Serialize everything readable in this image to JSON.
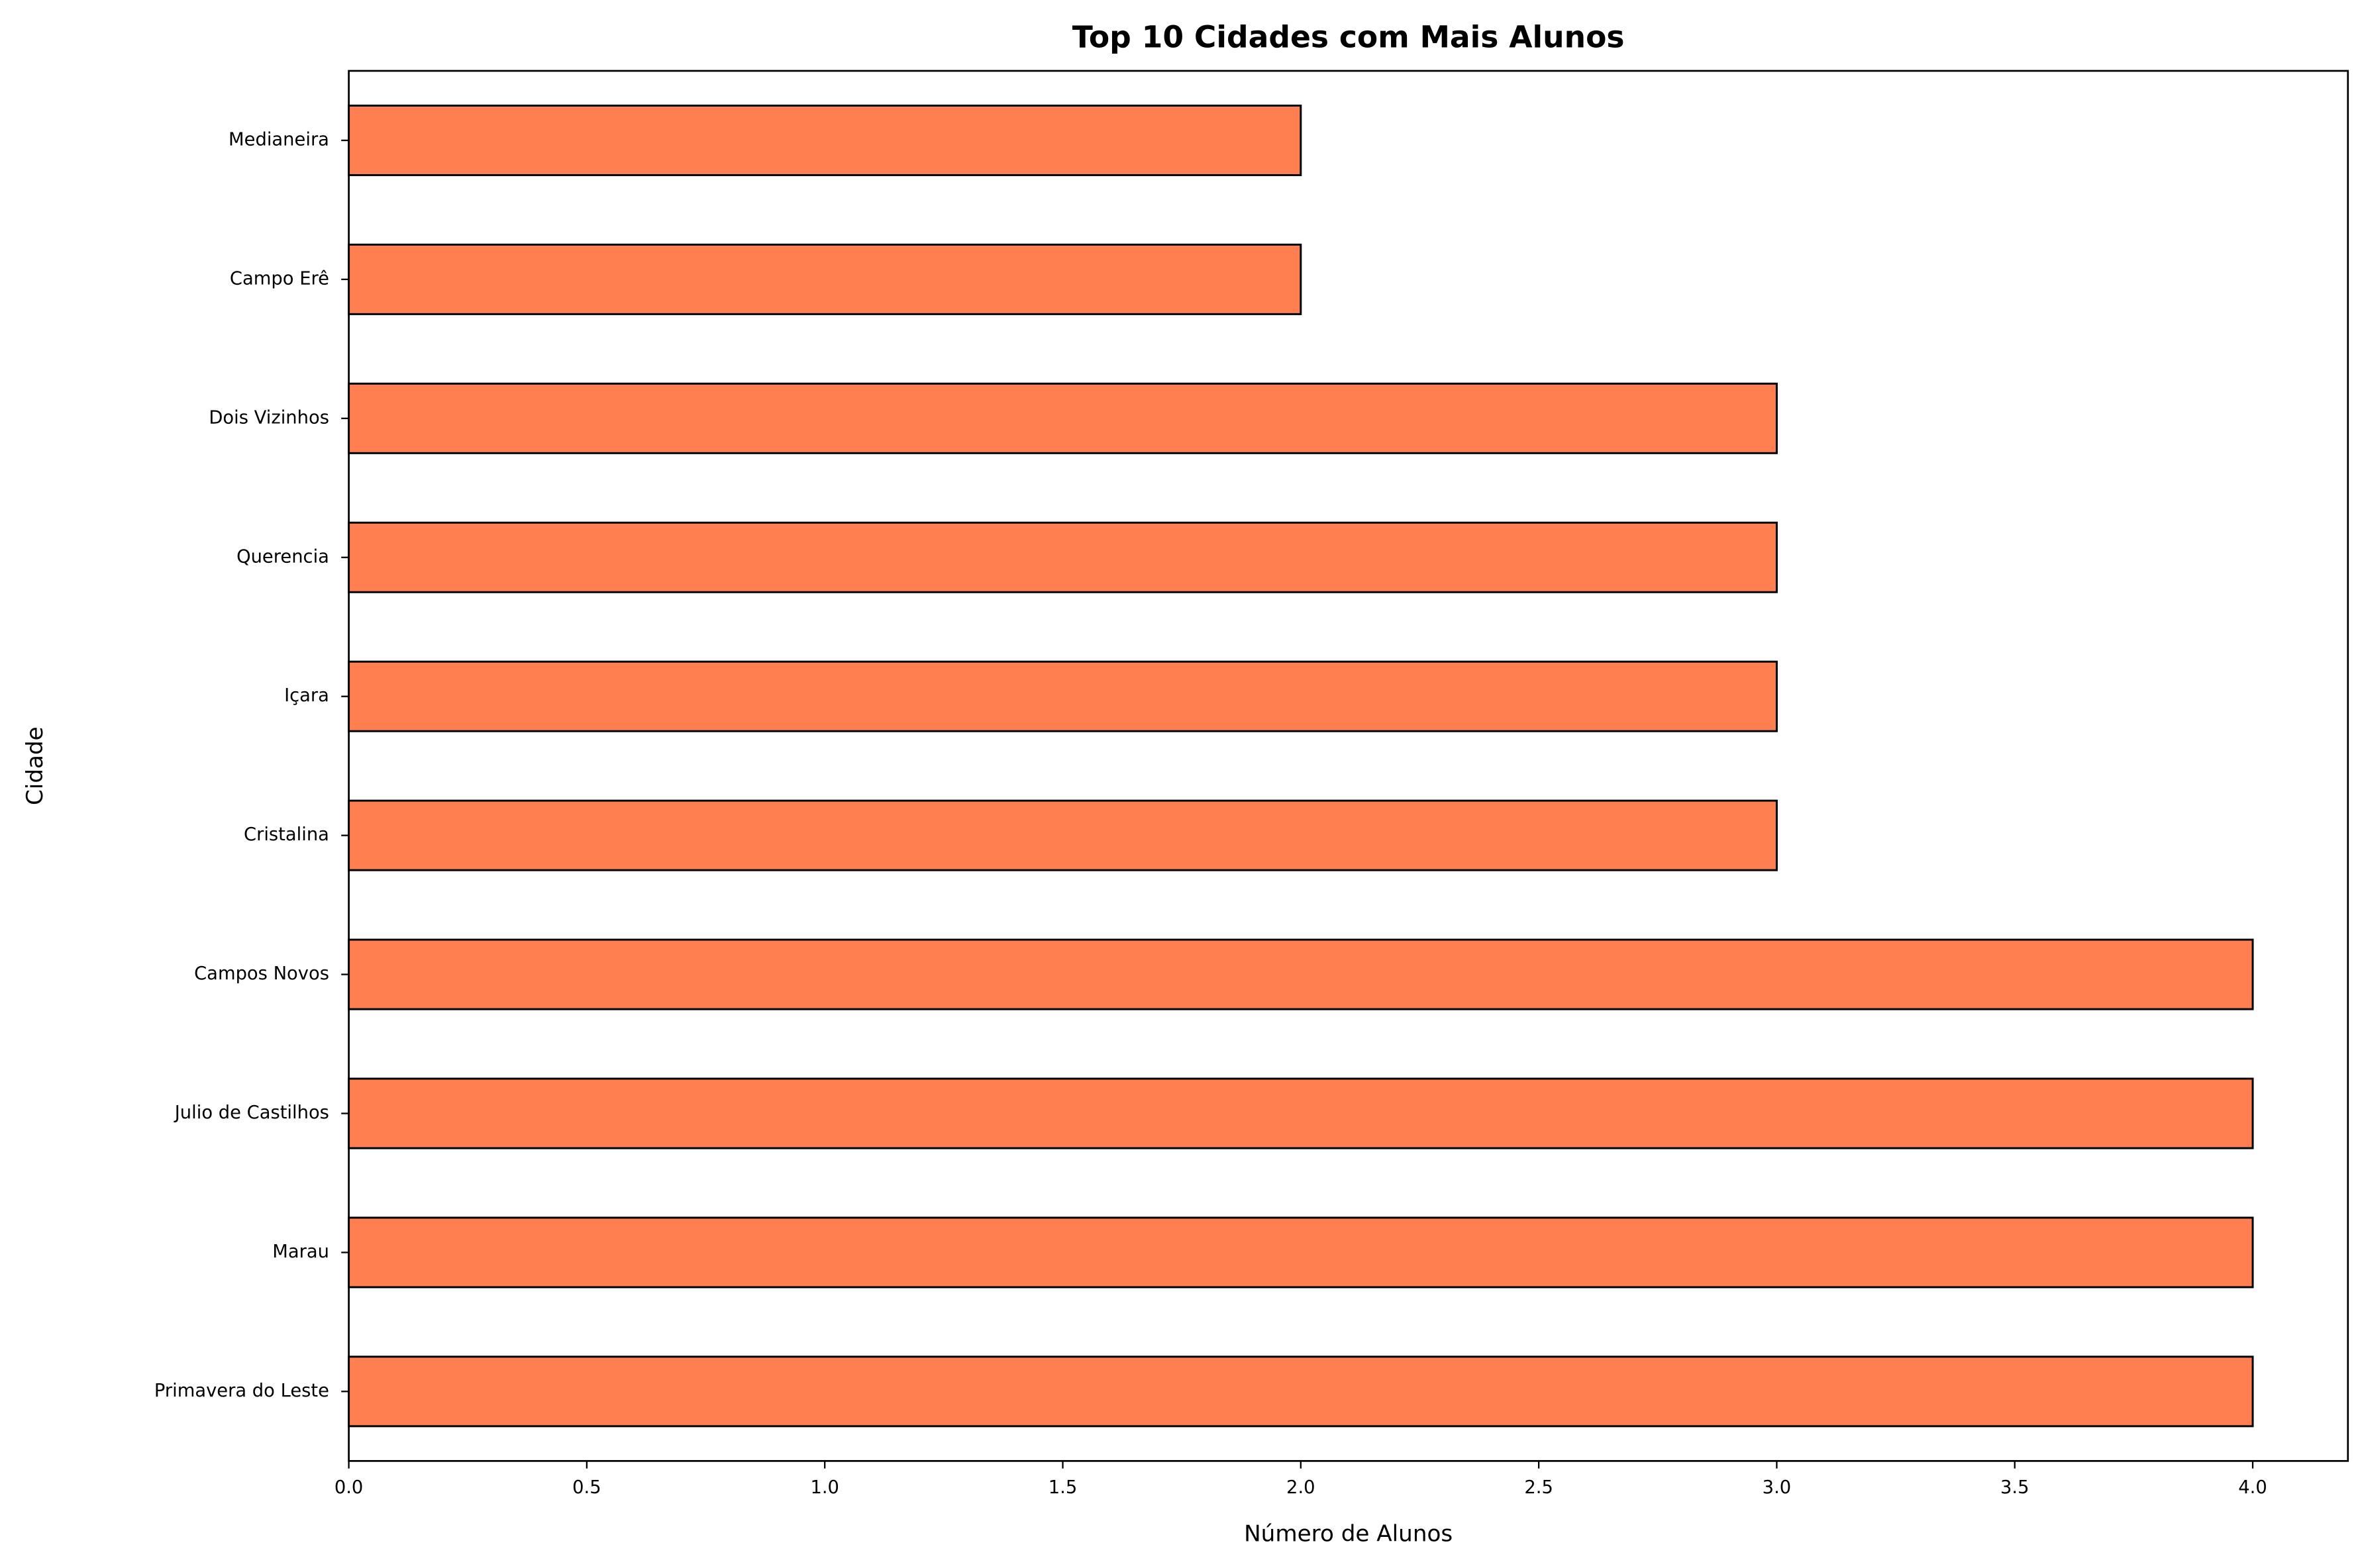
{
  "chart_data": {
    "type": "barh",
    "title": "Top 10 Cidades com Mais Alunos",
    "x_label": "Número de Alunos",
    "y_label": "Cidade",
    "categories": [
      "Primavera do Leste",
      "Marau",
      "Julio de Castilhos",
      "Campos Novos",
      "Cristalina",
      "Içara",
      "Querencia",
      "Dois Vizinhos",
      "Campo Erê",
      "Medianeira"
    ],
    "values": [
      4,
      4,
      4,
      4,
      3,
      3,
      3,
      3,
      2,
      2
    ],
    "color": "#ff7f50",
    "edgecolor": "#000000",
    "xlim": [
      0,
      4.2
    ],
    "xticks": [
      {
        "value": 0,
        "label": "0.0"
      },
      0.5,
      {
        "value": 1,
        "label": "1.0"
      },
      1.5,
      {
        "value": 2,
        "label": "2.0"
      },
      2.5,
      {
        "value": 3,
        "label": "3.0"
      },
      3.5,
      {
        "value": 4,
        "label": "4.0"
      }
    ],
    "grid": false
  }
}
